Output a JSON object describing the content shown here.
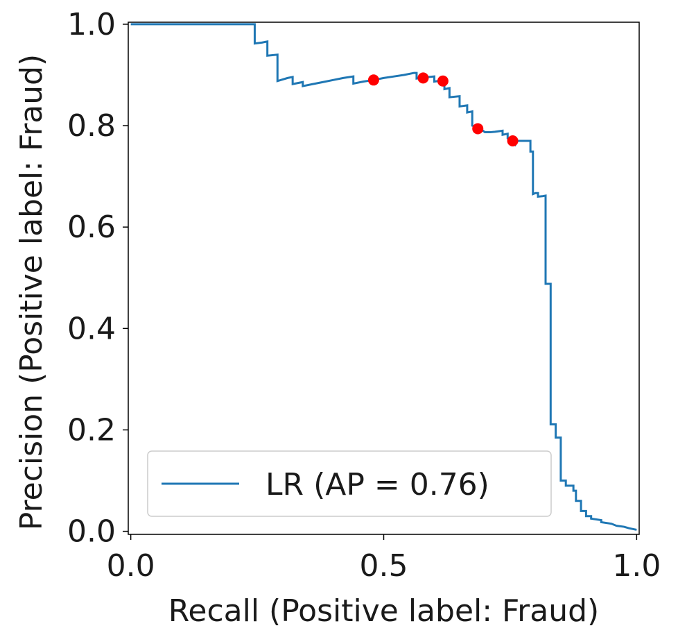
{
  "chart_data": {
    "type": "line",
    "title": "",
    "xlabel": "Recall (Positive label: Fraud)",
    "ylabel": "Precision (Positive label: Fraud)",
    "xlim": [
      -0.005,
      1.005
    ],
    "ylim": [
      -0.006,
      1.004
    ],
    "x_ticks": [
      0.0,
      0.5,
      1.0
    ],
    "x_tick_labels": [
      "0.0",
      "0.5",
      "1.0"
    ],
    "y_ticks": [
      0.0,
      0.2,
      0.4,
      0.6,
      0.8,
      1.0
    ],
    "y_tick_labels": [
      "0.0",
      "0.2",
      "0.4",
      "0.6",
      "0.8",
      "1.0"
    ],
    "grid": false,
    "legend_position": "lower-left",
    "series": [
      {
        "name": "LR (AP = 0.76)",
        "color": "#1f77b4",
        "drawstyle": "steps",
        "points": [
          [
            0.0,
            1.0
          ],
          [
            0.245,
            1.0
          ],
          [
            0.245,
            0.962
          ],
          [
            0.26,
            0.964
          ],
          [
            0.27,
            0.966
          ],
          [
            0.27,
            0.938
          ],
          [
            0.29,
            0.94
          ],
          [
            0.29,
            0.888
          ],
          [
            0.3,
            0.891
          ],
          [
            0.31,
            0.894
          ],
          [
            0.32,
            0.896
          ],
          [
            0.32,
            0.882
          ],
          [
            0.34,
            0.886
          ],
          [
            0.34,
            0.878
          ],
          [
            0.36,
            0.882
          ],
          [
            0.38,
            0.886
          ],
          [
            0.4,
            0.89
          ],
          [
            0.42,
            0.894
          ],
          [
            0.44,
            0.897
          ],
          [
            0.44,
            0.883
          ],
          [
            0.46,
            0.887
          ],
          [
            0.48,
            0.89
          ],
          [
            0.5,
            0.894
          ],
          [
            0.52,
            0.897
          ],
          [
            0.54,
            0.9
          ],
          [
            0.56,
            0.904
          ],
          [
            0.565,
            0.904
          ],
          [
            0.565,
            0.893
          ],
          [
            0.58,
            0.895
          ],
          [
            0.6,
            0.897
          ],
          [
            0.6,
            0.887
          ],
          [
            0.615,
            0.889
          ],
          [
            0.62,
            0.891
          ],
          [
            0.62,
            0.872
          ],
          [
            0.63,
            0.874
          ],
          [
            0.63,
            0.856
          ],
          [
            0.65,
            0.858
          ],
          [
            0.65,
            0.838
          ],
          [
            0.665,
            0.84
          ],
          [
            0.665,
            0.826
          ],
          [
            0.675,
            0.828
          ],
          [
            0.675,
            0.8
          ],
          [
            0.69,
            0.795
          ],
          [
            0.7,
            0.787
          ],
          [
            0.71,
            0.787
          ],
          [
            0.72,
            0.788
          ],
          [
            0.735,
            0.79
          ],
          [
            0.735,
            0.782
          ],
          [
            0.745,
            0.784
          ],
          [
            0.745,
            0.775
          ],
          [
            0.76,
            0.762
          ],
          [
            0.765,
            0.77
          ],
          [
            0.79,
            0.77
          ],
          [
            0.79,
            0.749
          ],
          [
            0.795,
            0.749
          ],
          [
            0.795,
            0.665
          ],
          [
            0.8,
            0.667
          ],
          [
            0.805,
            0.667
          ],
          [
            0.805,
            0.66
          ],
          [
            0.815,
            0.661
          ],
          [
            0.82,
            0.662
          ],
          [
            0.82,
            0.488
          ],
          [
            0.83,
            0.488
          ],
          [
            0.83,
            0.211
          ],
          [
            0.84,
            0.211
          ],
          [
            0.84,
            0.185
          ],
          [
            0.85,
            0.185
          ],
          [
            0.85,
            0.1
          ],
          [
            0.86,
            0.1
          ],
          [
            0.86,
            0.09
          ],
          [
            0.875,
            0.09
          ],
          [
            0.875,
            0.08
          ],
          [
            0.88,
            0.08
          ],
          [
            0.88,
            0.06
          ],
          [
            0.89,
            0.06
          ],
          [
            0.89,
            0.04
          ],
          [
            0.9,
            0.04
          ],
          [
            0.9,
            0.03
          ],
          [
            0.91,
            0.03
          ],
          [
            0.91,
            0.025
          ],
          [
            0.93,
            0.022
          ],
          [
            0.93,
            0.018
          ],
          [
            0.95,
            0.015
          ],
          [
            0.96,
            0.011
          ],
          [
            0.975,
            0.009
          ],
          [
            0.985,
            0.006
          ],
          [
            1.0,
            0.003
          ]
        ]
      },
      {
        "type": "scatter",
        "color": "#ff0000",
        "points": [
          [
            0.48,
            0.89
          ],
          [
            0.578,
            0.894
          ],
          [
            0.617,
            0.888
          ],
          [
            0.686,
            0.794
          ],
          [
            0.755,
            0.77
          ]
        ]
      }
    ]
  }
}
